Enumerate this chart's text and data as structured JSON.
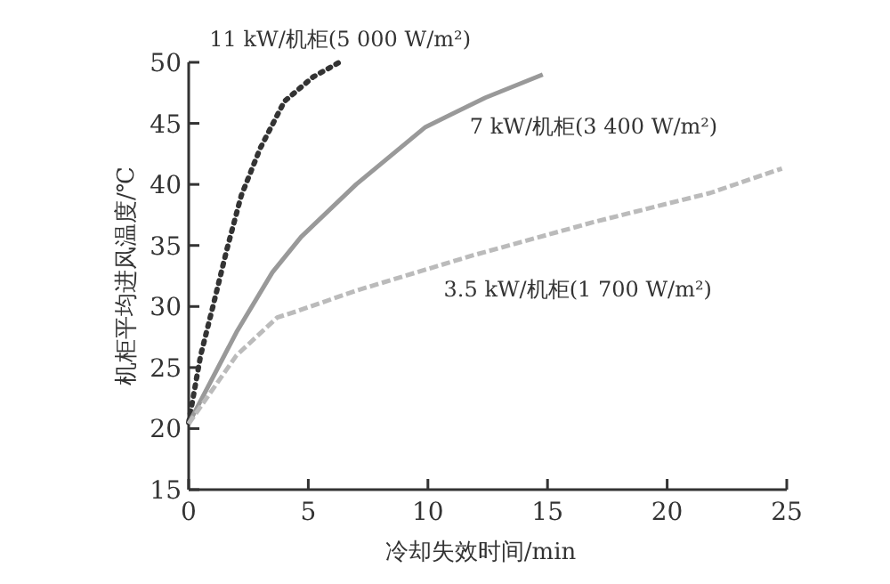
{
  "chart_data": {
    "type": "line",
    "xlabel": "冷却失效时间/min",
    "ylabel": "机柜平均进风温度/℃",
    "xlim": [
      0,
      25
    ],
    "ylim": [
      15,
      50
    ],
    "xticks": [
      0,
      5,
      10,
      15,
      20,
      25
    ],
    "yticks": [
      15,
      20,
      25,
      30,
      35,
      40,
      45,
      50
    ],
    "grid": false,
    "legend": false,
    "series": [
      {
        "name": "11 kW/机柜(5 000 W/m²)",
        "color": "#333333",
        "line_style": "dotted",
        "x": [
          0,
          0.5,
          1,
          1.6,
          2.2,
          3.0,
          4.0,
          5.2,
          6.3
        ],
        "values": [
          20.5,
          26.0,
          29.9,
          34.7,
          39.1,
          43.0,
          46.8,
          48.8,
          50.0
        ]
      },
      {
        "name": "7 kW/机柜(3 400 W/m²)",
        "color": "#999999",
        "line_style": "solid",
        "x": [
          0,
          2.0,
          3.5,
          4.7,
          7.0,
          9.9,
          12.4,
          14.8
        ],
        "values": [
          20.4,
          27.9,
          32.8,
          35.7,
          40.0,
          44.7,
          47.1,
          49.0
        ]
      },
      {
        "name": "3.5 kW/机柜(1 700 W/m²)",
        "color": "#bbbbbb",
        "line_style": "dashed",
        "x": [
          0,
          2.0,
          3.7,
          4.5,
          7.0,
          11.9,
          16.9,
          21.8,
          24.8
        ],
        "values": [
          20.4,
          26.0,
          29.1,
          29.6,
          31.3,
          34.2,
          36.9,
          39.3,
          41.3
        ]
      }
    ]
  }
}
